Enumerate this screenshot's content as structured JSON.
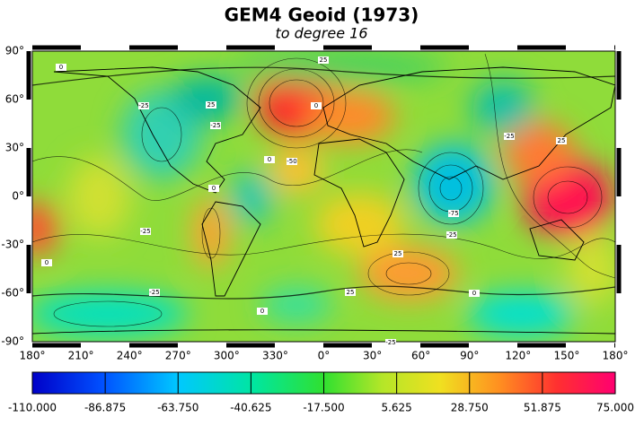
{
  "header": {
    "title": "GEM4 Geoid (1973)",
    "subtitle": "to degree 16"
  },
  "map": {
    "lon_ticks": [
      "180°",
      "210°",
      "240°",
      "270°",
      "300°",
      "330°",
      "0°",
      "30°",
      "60°",
      "90°",
      "120°",
      "150°",
      "180°"
    ],
    "lat_ticks": [
      "90°",
      "60°",
      "30°",
      "0°",
      "-30°",
      "-60°",
      "-90°"
    ],
    "contour_labels": [
      "0",
      "25",
      "-25",
      "25",
      "-25",
      "0",
      "0",
      "-50",
      "0",
      "-25",
      "-75",
      "25",
      "-25",
      "0",
      "25",
      "-25",
      "0",
      "0",
      "-25",
      "25",
      "-25"
    ]
  },
  "colorbar": {
    "ticks": [
      "-110.000",
      "-86.875",
      "-63.750",
      "-40.625",
      "-17.500",
      "5.625",
      "28.750",
      "51.875",
      "75.000"
    ]
  }
}
